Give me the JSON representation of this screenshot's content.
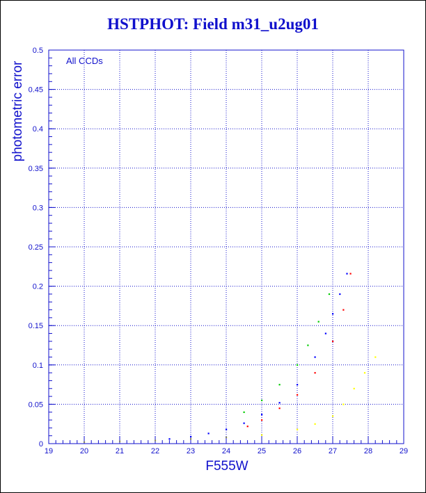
{
  "title": "HSTPHOT: Field m31_u2ug01",
  "colors": {
    "axis": "#1010cc",
    "grid": "#1010cc",
    "title": "#1010cc",
    "points": [
      "#0000ff",
      "#ff0000",
      "#00cc00",
      "#ffff00"
    ]
  },
  "chart_data": {
    "type": "scatter",
    "title": "HSTPHOT: Field m31_u2ug01",
    "xlabel": "F555W",
    "ylabel": "photometric error",
    "xlim": [
      19,
      29
    ],
    "ylim": [
      0,
      0.5
    ],
    "xticks": [
      "19",
      "20",
      "21",
      "22",
      "23",
      "24",
      "25",
      "26",
      "27",
      "28",
      "29"
    ],
    "yticks": [
      "0",
      "0.05",
      "0.1",
      "0.15",
      "0.2",
      "0.25",
      "0.3",
      "0.35",
      "0.4",
      "0.45",
      "0.5"
    ],
    "grid": true,
    "annotations": [
      "All CCDs"
    ],
    "series": [
      {
        "color": "#0000ff",
        "x": [
          22.4,
          23.0,
          23.5,
          24.0,
          24.5,
          25.0,
          25.5,
          26.0,
          26.5,
          26.8,
          27.0,
          27.2,
          27.4
        ],
        "y": [
          0.006,
          0.009,
          0.013,
          0.018,
          0.026,
          0.037,
          0.052,
          0.075,
          0.11,
          0.14,
          0.165,
          0.19,
          0.216
        ]
      },
      {
        "color": "#ff0000",
        "x": [
          24.6,
          25.0,
          25.5,
          26.0,
          26.5,
          27.0,
          27.3,
          27.5
        ],
        "y": [
          0.022,
          0.03,
          0.045,
          0.062,
          0.09,
          0.13,
          0.17,
          0.216
        ]
      },
      {
        "color": "#00cc00",
        "x": [
          24.5,
          25.0,
          25.5,
          26.0,
          26.3,
          26.6,
          26.9
        ],
        "y": [
          0.04,
          0.055,
          0.075,
          0.1,
          0.125,
          0.155,
          0.19
        ]
      },
      {
        "color": "#ffff00",
        "x": [
          20.0,
          21.0,
          22.0,
          23.0,
          24.0,
          25.0,
          26.0,
          26.5,
          27.0,
          27.3,
          27.6,
          27.9,
          28.2
        ],
        "y": [
          0.002,
          0.003,
          0.004,
          0.006,
          0.008,
          0.011,
          0.018,
          0.025,
          0.035,
          0.05,
          0.07,
          0.09,
          0.11
        ]
      }
    ]
  }
}
